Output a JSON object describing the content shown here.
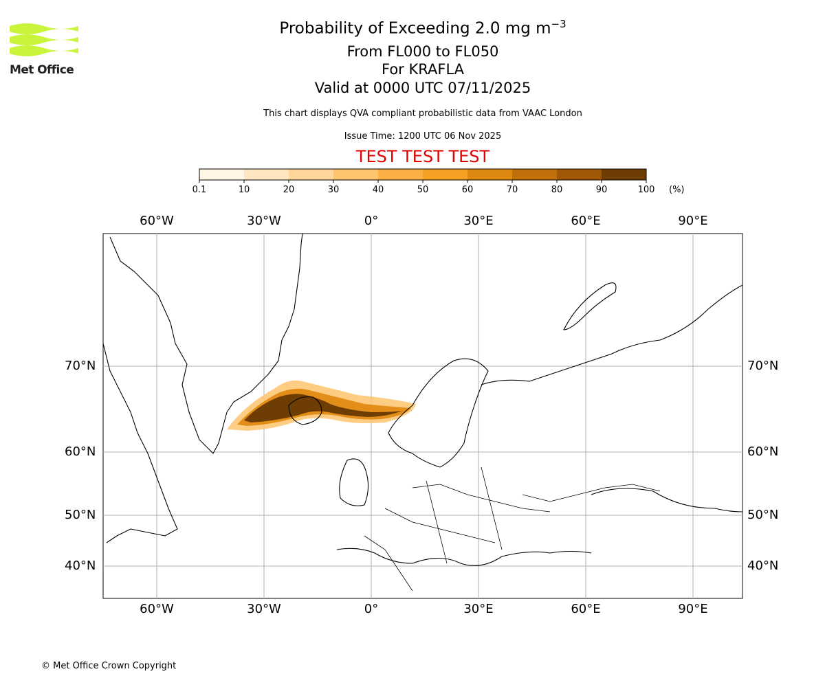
{
  "logo": {
    "text": "Met Office",
    "color": "#c8f53c"
  },
  "title": {
    "main": "Probability of Exceeding 2.0 mg m",
    "superscript": "−3",
    "levels": "From FL000 to FL050",
    "volcano": "For KRAFLA",
    "valid": "Valid at 0000 UTC 07/11/2025"
  },
  "description": "This chart displays QVA compliant probabilistic data from VAAC London",
  "issue_time": "Issue Time: 1200 UTC 06 Nov 2025",
  "test_banner": "TEST TEST TEST",
  "colorbar": {
    "ticks": [
      "0.1",
      "10",
      "20",
      "30",
      "40",
      "50",
      "60",
      "70",
      "80",
      "90",
      "100"
    ],
    "unit": "(%)",
    "colors": [
      "#fff6e6",
      "#ffe6c0",
      "#fed699",
      "#fec46e",
      "#fbb046",
      "#f5a022",
      "#dd8810",
      "#c0700a",
      "#9e5806",
      "#6e3d04"
    ]
  },
  "map": {
    "lon_labels": [
      "60°W",
      "30°W",
      "0°",
      "30°E",
      "60°E",
      "90°E"
    ],
    "lat_labels": [
      "70°N",
      "60°N",
      "50°N",
      "40°N"
    ],
    "lon_values": [
      -60,
      -30,
      0,
      30,
      60,
      90
    ],
    "lat_values": [
      70,
      60,
      50,
      40
    ]
  },
  "copyright": "© Met Office Crown Copyright"
}
